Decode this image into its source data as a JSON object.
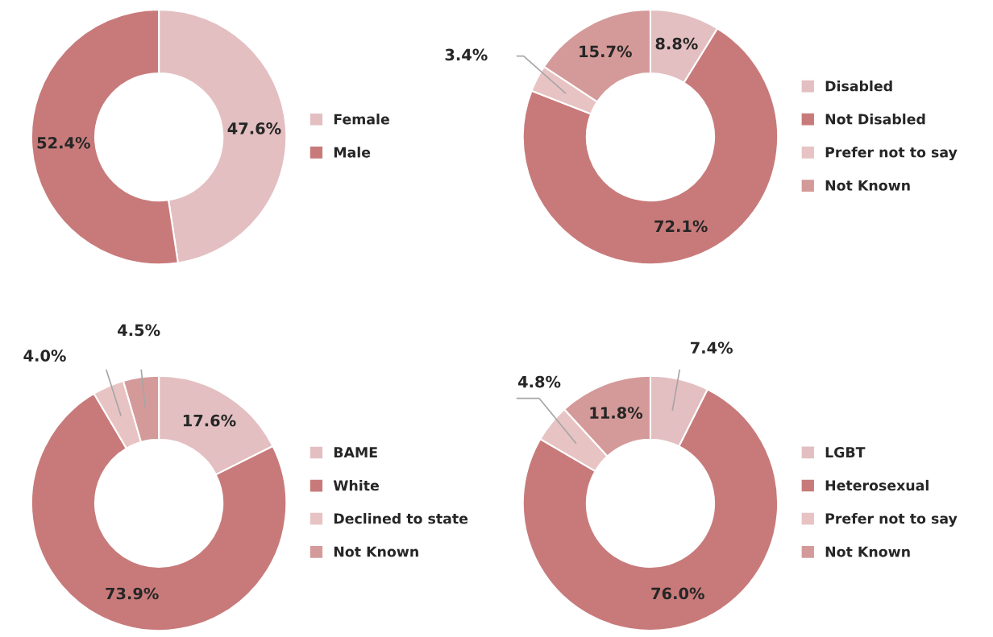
{
  "chart_data": [
    {
      "type": "donut",
      "categories": [
        "Female",
        "Male"
      ],
      "values": [
        47.6,
        52.4
      ],
      "value_labels": [
        "47.6%",
        "52.4%"
      ],
      "colors": [
        "#e3bfc1",
        "#c87a7a"
      ],
      "legend": "right"
    },
    {
      "type": "donut",
      "categories": [
        "Disabled",
        "Not Disabled",
        "Prefer not to say",
        "Not Known"
      ],
      "values": [
        8.8,
        72.1,
        3.4,
        15.7
      ],
      "value_labels": [
        "8.8%",
        "72.1%",
        "3.4%",
        "15.7%"
      ],
      "colors": [
        "#e3bfc1",
        "#c87a7a",
        "#e8c3c3",
        "#d49a99"
      ],
      "legend": "right"
    },
    {
      "type": "donut",
      "categories": [
        "BAME",
        "White",
        "Declined to state",
        "Not Known"
      ],
      "values": [
        17.6,
        73.9,
        4.0,
        4.5
      ],
      "value_labels": [
        "17.6%",
        "73.9%",
        "4.0%",
        "4.5%"
      ],
      "colors": [
        "#e3bfc1",
        "#c87a7a",
        "#e8c3c3",
        "#d49a99"
      ],
      "legend": "right"
    },
    {
      "type": "donut",
      "categories": [
        "LGBT",
        "Heterosexual",
        "Prefer not to say",
        "Not Known"
      ],
      "values": [
        7.4,
        76.0,
        4.8,
        11.8
      ],
      "value_labels": [
        "7.4%",
        "76.0%",
        "4.8%",
        "11.8%"
      ],
      "colors": [
        "#e3bfc1",
        "#c87a7a",
        "#e8c3c3",
        "#d49a99"
      ],
      "legend": "right"
    }
  ]
}
